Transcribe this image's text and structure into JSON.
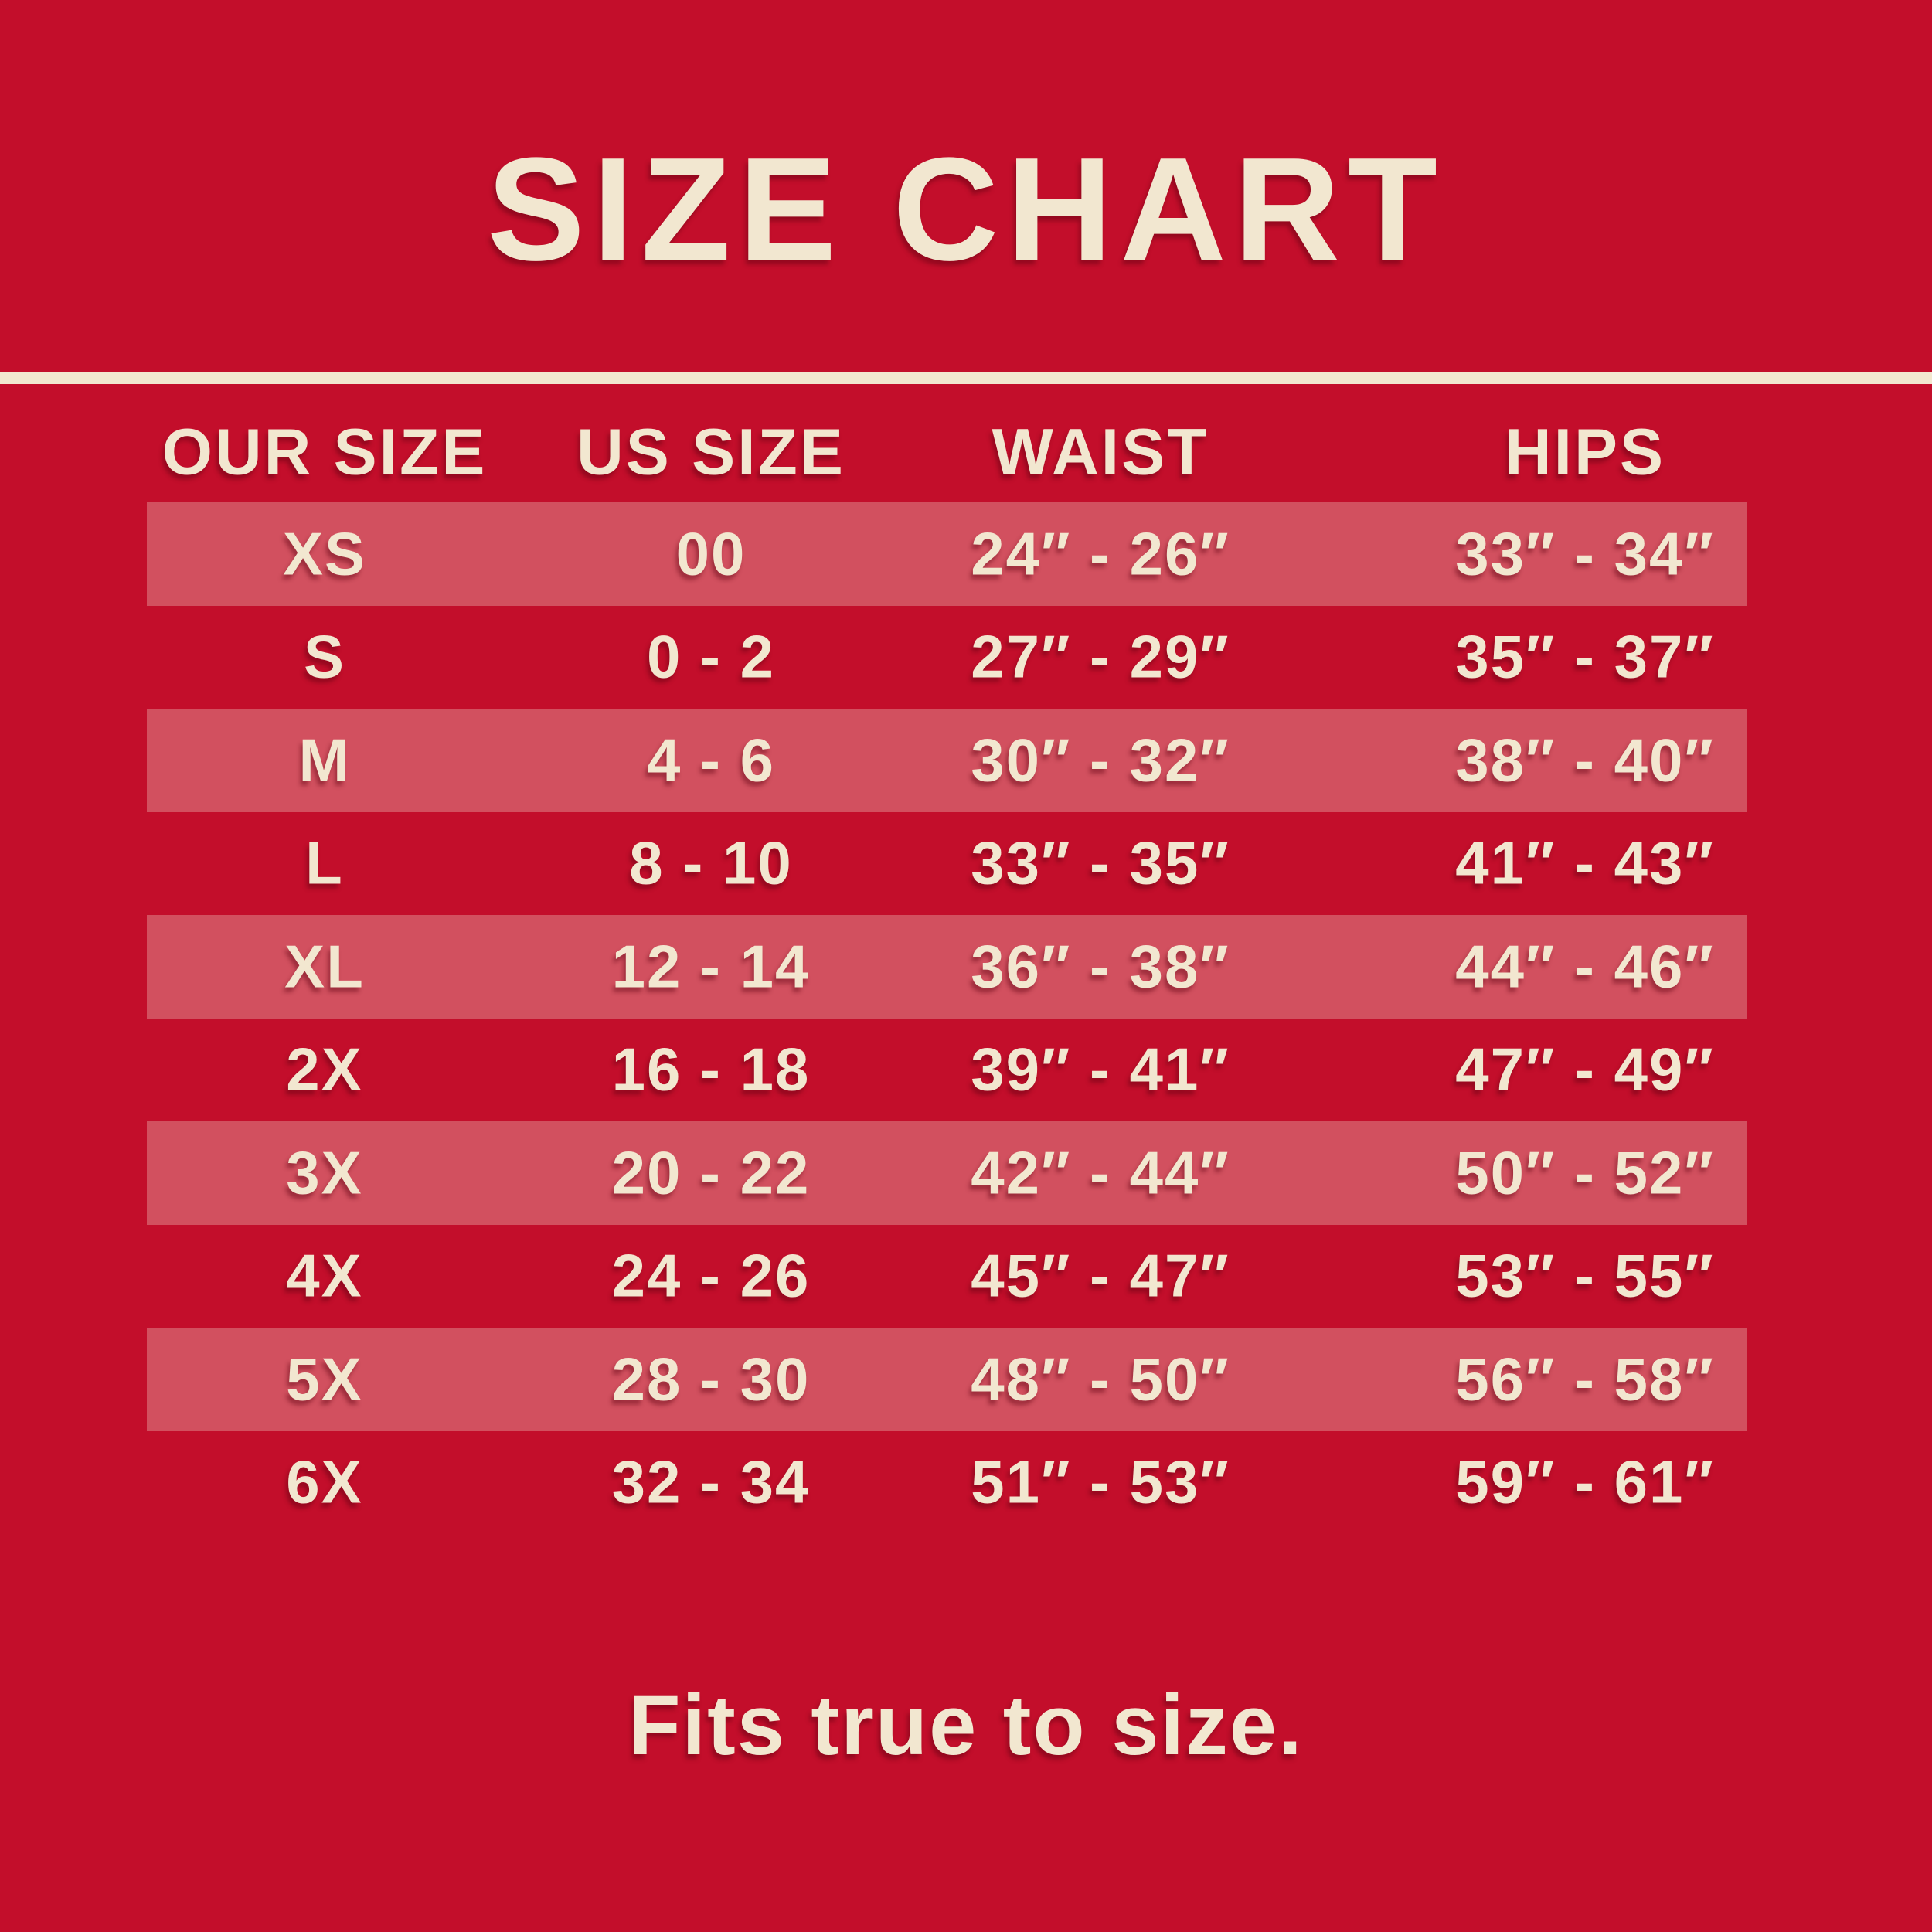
{
  "title": "SIZE CHART",
  "footer": {
    "note": "Fits true to size."
  },
  "colors": {
    "background": "#C30E2B",
    "stripe": "#D2505F",
    "text": "#F2E7D0",
    "divider": "#F2E7D0"
  },
  "chart_data": {
    "type": "table",
    "title": "SIZE CHART",
    "columns": [
      "OUR SIZE",
      "US SIZE",
      "WAIST",
      "HIPS"
    ],
    "rows": [
      {
        "striped": true,
        "cells": [
          "XS",
          "00",
          "24″ - 26″",
          "33″ - 34″"
        ]
      },
      {
        "striped": false,
        "cells": [
          "S",
          "0 - 2",
          "27″ - 29″",
          "35″ - 37″"
        ]
      },
      {
        "striped": true,
        "cells": [
          "M",
          "4 - 6",
          "30″ - 32″",
          "38″ - 40″"
        ]
      },
      {
        "striped": false,
        "cells": [
          "L",
          "8 - 10",
          "33″ - 35″",
          "41″ - 43″"
        ]
      },
      {
        "striped": true,
        "cells": [
          "XL",
          "12 - 14",
          "36″ - 38″",
          "44″ - 46″"
        ]
      },
      {
        "striped": false,
        "cells": [
          "2X",
          "16 - 18",
          "39″ - 41″",
          "47″ - 49″"
        ]
      },
      {
        "striped": true,
        "cells": [
          "3X",
          "20 - 22",
          "42″ - 44″",
          "50″ - 52″"
        ]
      },
      {
        "striped": false,
        "cells": [
          "4X",
          "24 - 26",
          "45″ - 47″",
          "53″ - 55″"
        ]
      },
      {
        "striped": true,
        "cells": [
          "5X",
          "28 - 30",
          "48″ - 50″",
          "56″ - 58″"
        ]
      },
      {
        "striped": false,
        "cells": [
          "6X",
          "32 - 34",
          "51″ - 53″",
          "59″ - 61″"
        ]
      }
    ],
    "footnote": "Fits true to size."
  }
}
